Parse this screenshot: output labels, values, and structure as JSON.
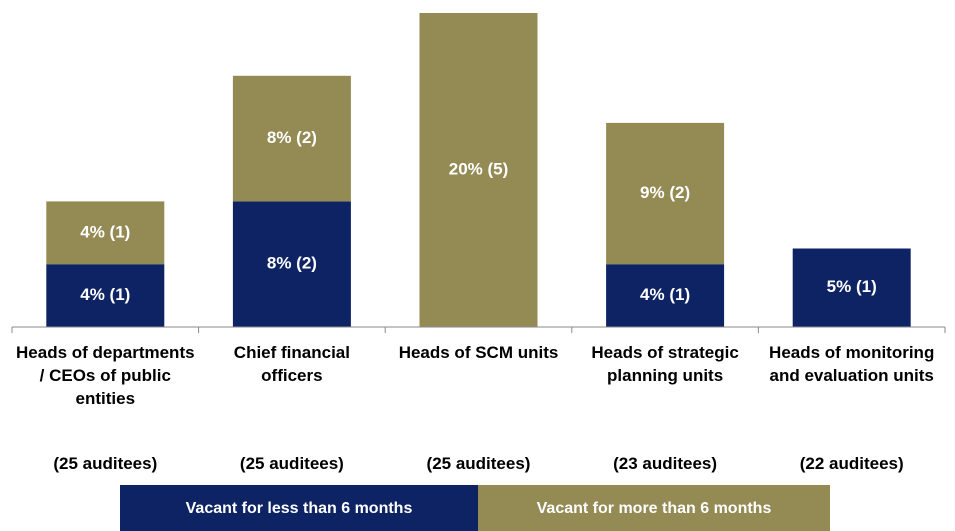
{
  "chart_data": {
    "type": "stacked_bar",
    "categories": [
      "Heads of departments / CEOs of public entities",
      "Chief financial officers",
      "Heads of SCM units",
      "Heads of strategic planning units",
      "Heads of monitoring and evaluation units"
    ],
    "subcategories": [
      "(25 auditees)",
      "(25 auditees)",
      "(25 auditees)",
      "(23 auditees)",
      "(22 auditees)"
    ],
    "series": [
      {
        "name": "Vacant for less than 6 months",
        "color": "#0d2364",
        "values": [
          4,
          8,
          null,
          4,
          5
        ],
        "value_labels": [
          "4% (1)",
          "8% (2)",
          null,
          "4% (1)",
          "5% (1)"
        ]
      },
      {
        "name": "Vacant for more than 6 months",
        "color": "#948a54",
        "values": [
          4,
          8,
          20,
          9,
          null
        ],
        "value_labels": [
          "4% (1)",
          "8% (2)",
          "20% (5)",
          "9% (2)",
          null
        ]
      }
    ],
    "ylim": [
      0,
      20
    ]
  }
}
